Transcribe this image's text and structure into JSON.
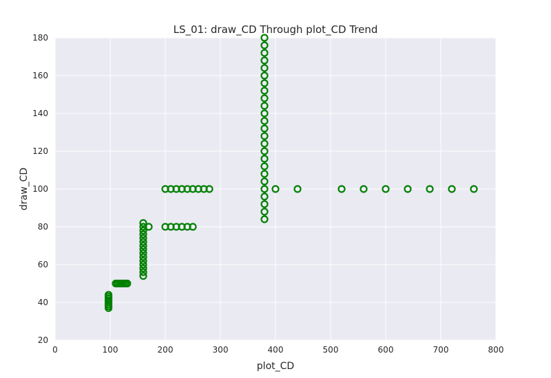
{
  "chart_data": {
    "type": "scatter",
    "title": "LS_01: draw_CD Through plot_CD Trend",
    "xlabel": "plot_CD",
    "ylabel": "draw_CD",
    "xlim": [
      0,
      800
    ],
    "ylim": [
      20,
      180
    ],
    "xticks": [
      "0",
      "100",
      "200",
      "300",
      "400",
      "500",
      "600",
      "700",
      "800"
    ],
    "yticks": [
      "20",
      "40",
      "60",
      "80",
      "100",
      "120",
      "140",
      "160",
      "180"
    ],
    "grid": true,
    "legend": "none",
    "marker": "hollow circle",
    "marker_color": "#008000",
    "background_color": "#EAEAF2",
    "grid_color": "#FFFFFF",
    "points": [
      [
        97,
        37
      ],
      [
        97,
        38
      ],
      [
        97,
        39
      ],
      [
        97,
        40
      ],
      [
        97,
        41
      ],
      [
        97,
        42
      ],
      [
        97,
        43
      ],
      [
        97,
        44
      ],
      [
        110,
        50
      ],
      [
        113,
        50
      ],
      [
        116,
        50
      ],
      [
        119,
        50
      ],
      [
        122,
        50
      ],
      [
        125,
        50
      ],
      [
        128,
        50
      ],
      [
        131,
        50
      ],
      [
        160,
        54
      ],
      [
        160,
        56
      ],
      [
        160,
        58
      ],
      [
        160,
        60
      ],
      [
        160,
        62
      ],
      [
        160,
        64
      ],
      [
        160,
        66
      ],
      [
        160,
        68
      ],
      [
        160,
        70
      ],
      [
        160,
        72
      ],
      [
        160,
        74
      ],
      [
        160,
        76
      ],
      [
        160,
        78
      ],
      [
        160,
        80
      ],
      [
        160,
        82
      ],
      [
        170,
        80
      ],
      [
        200,
        80
      ],
      [
        210,
        80
      ],
      [
        220,
        80
      ],
      [
        230,
        80
      ],
      [
        240,
        80
      ],
      [
        250,
        80
      ],
      [
        200,
        100
      ],
      [
        210,
        100
      ],
      [
        220,
        100
      ],
      [
        230,
        100
      ],
      [
        240,
        100
      ],
      [
        250,
        100
      ],
      [
        260,
        100
      ],
      [
        270,
        100
      ],
      [
        280,
        100
      ],
      [
        380,
        84
      ],
      [
        380,
        88
      ],
      [
        380,
        92
      ],
      [
        380,
        96
      ],
      [
        380,
        100
      ],
      [
        380,
        104
      ],
      [
        380,
        108
      ],
      [
        380,
        112
      ],
      [
        380,
        116
      ],
      [
        380,
        120
      ],
      [
        380,
        124
      ],
      [
        380,
        128
      ],
      [
        380,
        132
      ],
      [
        380,
        136
      ],
      [
        380,
        140
      ],
      [
        380,
        144
      ],
      [
        380,
        148
      ],
      [
        380,
        152
      ],
      [
        380,
        156
      ],
      [
        380,
        160
      ],
      [
        380,
        164
      ],
      [
        380,
        168
      ],
      [
        380,
        172
      ],
      [
        380,
        176
      ],
      [
        380,
        180
      ],
      [
        400,
        100
      ],
      [
        440,
        100
      ],
      [
        520,
        100
      ],
      [
        560,
        100
      ],
      [
        600,
        100
      ],
      [
        640,
        100
      ],
      [
        680,
        100
      ],
      [
        720,
        100
      ],
      [
        760,
        100
      ]
    ]
  }
}
